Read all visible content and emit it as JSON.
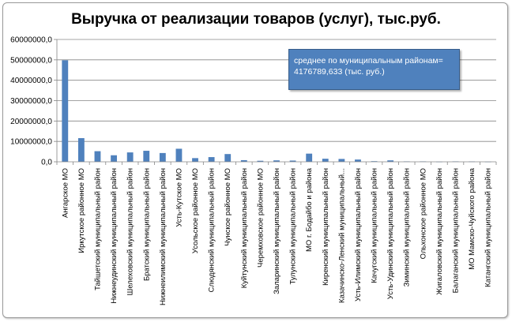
{
  "chart_data": {
    "type": "bar",
    "title": "Выручка от реализации товаров (услуг), тыс.руб.",
    "annotation": "среднее по муниципальным районам= 4176789,633  (тыс. руб.)",
    "ylim": [
      0,
      60000000
    ],
    "y_ticks": [
      "0,0",
      "10000000,0",
      "20000000,0",
      "30000000,0",
      "40000000,0",
      "50000000,0",
      "60000000,0"
    ],
    "grid": true,
    "bar_color": "#4f81bd",
    "categories": [
      "Ангарское МО",
      "Иркутское районное МО",
      "Тайшетский муниципальный район",
      "Нижнеудинский муниципальный район",
      "Шелеховский муниципальный район",
      "Братский муниципальный район",
      "Нижнеилимский муниципальный район",
      "Усть-Кутское МО",
      "Усольское районное МО",
      "Слюдянский муниципальный район",
      "Чунское районное МО",
      "Куйтунский муниципальный район",
      "Черемховское районное МО",
      "Заларинский муниципальный район",
      "Тулунский муниципальный район",
      "МО г. Бодайбо и района",
      "Киренский муниципальный район",
      "Казачинско-Ленский муниципальный...",
      "Усть-Илимский муниципальный район",
      "Качугский муниципальный район",
      "Усть-Удинский муниципальный район",
      "Зиминский муниципальный район",
      "Ольхонское районное МО",
      "Жигаловский муниципальный район",
      "Балаганский муниципальный район",
      "МО Мамско-Чуйского района",
      "Катангский муниципальный район"
    ],
    "values": [
      49800000,
      11600000,
      5200000,
      3200000,
      4600000,
      5400000,
      4300000,
      6400000,
      1800000,
      2300000,
      3800000,
      800000,
      500000,
      700000,
      600000,
      4000000,
      1500000,
      1400000,
      1100000,
      300000,
      700000,
      200000,
      200000,
      50000,
      200000,
      150000,
      50000
    ]
  }
}
